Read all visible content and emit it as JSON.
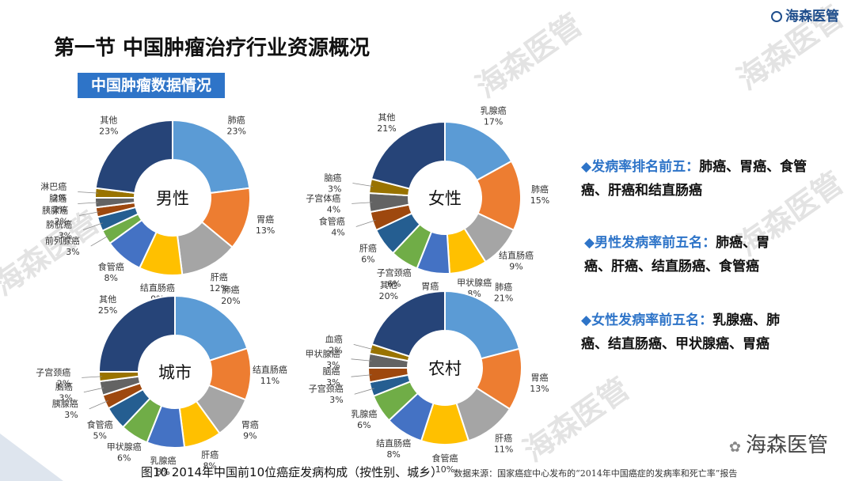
{
  "header": {
    "title": "第一节 中国肿瘤治疗行业资源概况",
    "subtitle": "中国肿瘤数据情况",
    "brand": "海森医管"
  },
  "footer": {
    "brand": "海森医管",
    "caption": "图10 2014年中国前10位癌症发病构成（按性别、城乡）",
    "source": "数据来源：国家癌症中心发布的“2014年中国癌症的发病率和死亡率”报告"
  },
  "notes": [
    {
      "head": "◆发病率排名前五：",
      "body": "肺癌、胃癌、食管癌、肝癌和结直肠癌"
    },
    {
      "head": "◆男性发病率前五名：",
      "body": "肺癌、胃癌、肝癌、结直肠癌、食管癌"
    },
    {
      "head": "◆女性发病率前五名：",
      "body": "乳腺癌、肺癌、结直肠癌、甲状腺癌、胃癌"
    }
  ],
  "chart_data": [
    {
      "type": "pie",
      "center_label": "男性",
      "slices": [
        {
          "name": "肺癌",
          "value": 23,
          "label": "23%",
          "color": "#5b9bd5"
        },
        {
          "name": "胃癌",
          "value": 13,
          "label": "13%",
          "color": "#ed7d31"
        },
        {
          "name": "肝癌",
          "value": 12,
          "label": "12%",
          "color": "#a5a5a5"
        },
        {
          "name": "结直肠癌",
          "value": 9,
          "label": "9%",
          "color": "#ffc000"
        },
        {
          "name": "食管癌",
          "value": 8,
          "label": "8%",
          "color": "#4472c4"
        },
        {
          "name": "前列腺癌",
          "value": 3,
          "label": "3%",
          "color": "#70ad47"
        },
        {
          "name": "膀胱癌",
          "value": 3,
          "label": "3%",
          "color": "#255e91"
        },
        {
          "name": "胰腺癌",
          "value": 2,
          "label": "2%",
          "color": "#9e480e"
        },
        {
          "name": "脑癌",
          "value": 2,
          "label": "2%",
          "color": "#636363"
        },
        {
          "name": "淋巴癌",
          "value": 2,
          "label": "2%",
          "color": "#997300"
        },
        {
          "name": "其他",
          "value": 23,
          "label": "23%",
          "color": "#264478"
        }
      ]
    },
    {
      "type": "pie",
      "center_label": "女性",
      "slices": [
        {
          "name": "乳腺癌",
          "value": 17,
          "label": "17%",
          "color": "#5b9bd5"
        },
        {
          "name": "肺癌",
          "value": 15,
          "label": "15%",
          "color": "#ed7d31"
        },
        {
          "name": "结直肠癌",
          "value": 9,
          "label": "9%",
          "color": "#a5a5a5"
        },
        {
          "name": "甲状腺癌",
          "value": 8,
          "label": "8%",
          "color": "#ffc000"
        },
        {
          "name": "胃癌",
          "value": 7,
          "label": "7%",
          "color": "#4472c4"
        },
        {
          "name": "子宫颈癌",
          "value": 6,
          "label": "6%",
          "color": "#70ad47"
        },
        {
          "name": "肝癌",
          "value": 6,
          "label": "6%",
          "color": "#255e91"
        },
        {
          "name": "食管癌",
          "value": 4,
          "label": "4%",
          "color": "#9e480e"
        },
        {
          "name": "子宫体癌",
          "value": 4,
          "label": "4%",
          "color": "#636363"
        },
        {
          "name": "脑癌",
          "value": 3,
          "label": "3%",
          "color": "#997300"
        },
        {
          "name": "其他",
          "value": 21,
          "label": "21%",
          "color": "#264478"
        }
      ]
    },
    {
      "type": "pie",
      "center_label": "城市",
      "slices": [
        {
          "name": "肺癌",
          "value": 20,
          "label": "20%",
          "color": "#5b9bd5"
        },
        {
          "name": "结直肠癌",
          "value": 11,
          "label": "11%",
          "color": "#ed7d31"
        },
        {
          "name": "胃癌",
          "value": 9,
          "label": "9%",
          "color": "#a5a5a5"
        },
        {
          "name": "肝癌",
          "value": 8,
          "label": "8%",
          "color": "#ffc000"
        },
        {
          "name": "乳腺癌",
          "value": 8,
          "label": "8%",
          "color": "#4472c4"
        },
        {
          "name": "甲状腺癌",
          "value": 6,
          "label": "6%",
          "color": "#70ad47"
        },
        {
          "name": "食管癌",
          "value": 5,
          "label": "5%",
          "color": "#255e91"
        },
        {
          "name": "胰腺癌",
          "value": 3,
          "label": "3%",
          "color": "#9e480e"
        },
        {
          "name": "脑癌",
          "value": 3,
          "label": "3%",
          "color": "#636363"
        },
        {
          "name": "子宫颈癌",
          "value": 2,
          "label": "2%",
          "color": "#997300"
        },
        {
          "name": "其他",
          "value": 25,
          "label": "25%",
          "color": "#264478"
        }
      ]
    },
    {
      "type": "pie",
      "center_label": "农村",
      "slices": [
        {
          "name": "肺癌",
          "value": 21,
          "label": "21%",
          "color": "#5b9bd5"
        },
        {
          "name": "胃癌",
          "value": 13,
          "label": "13%",
          "color": "#ed7d31"
        },
        {
          "name": "肝癌",
          "value": 11,
          "label": "11%",
          "color": "#a5a5a5"
        },
        {
          "name": "食管癌",
          "value": 10,
          "label": "10%",
          "color": "#ffc000"
        },
        {
          "name": "结直肠癌",
          "value": 8,
          "label": "8%",
          "color": "#4472c4"
        },
        {
          "name": "乳腺癌",
          "value": 6,
          "label": "6%",
          "color": "#70ad47"
        },
        {
          "name": "子宫颈癌",
          "value": 3,
          "label": "3%",
          "color": "#255e91"
        },
        {
          "name": "脑癌",
          "value": 3,
          "label": "3%",
          "color": "#9e480e"
        },
        {
          "name": "甲状腺癌",
          "value": 3,
          "label": "3%",
          "color": "#636363"
        },
        {
          "name": "血癌",
          "value": 2,
          "label": "2%",
          "color": "#997300"
        },
        {
          "name": "其他",
          "value": 20,
          "label": "20%",
          "color": "#264478"
        }
      ]
    }
  ]
}
